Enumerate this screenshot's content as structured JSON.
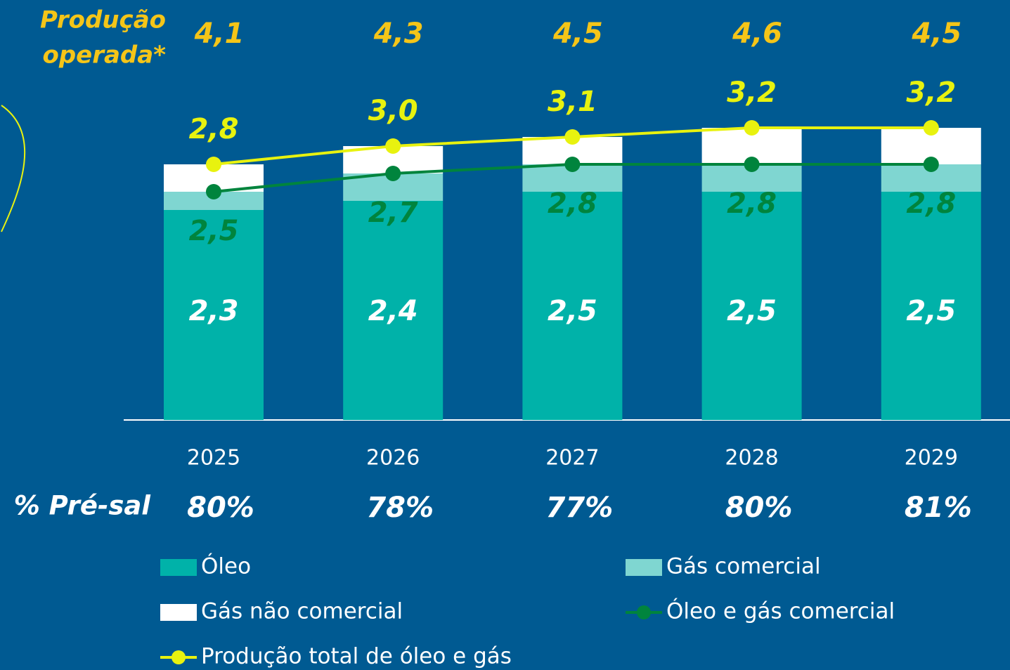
{
  "chart_data": {
    "type": "bar",
    "stacked": true,
    "categories": [
      "2025",
      "2026",
      "2027",
      "2028",
      "2029"
    ],
    "series": [
      {
        "name": "Óleo",
        "color": "#00b2a9",
        "values": [
          2.3,
          2.4,
          2.5,
          2.5,
          2.5
        ],
        "value_labels": [
          "2,3",
          "2,4",
          "2,5",
          "2,5",
          "2,5"
        ]
      },
      {
        "name": "Gás comercial",
        "color": "#7fd6d1",
        "values": [
          0.2,
          0.3,
          0.3,
          0.3,
          0.3
        ]
      },
      {
        "name": "Gás não comercial",
        "color": "#ffffff",
        "values": [
          0.3,
          0.3,
          0.3,
          0.4,
          0.4
        ]
      },
      {
        "name": "Óleo e gás comercial",
        "type": "line",
        "color": "#00843d",
        "values": [
          2.5,
          2.7,
          2.8,
          2.8,
          2.8
        ],
        "value_labels": [
          "2,5",
          "2,7",
          "2,8",
          "2,8",
          "2,8"
        ]
      },
      {
        "name": "Produção total de óleo e gás",
        "type": "line",
        "color": "#e8f20f",
        "values": [
          2.8,
          3.0,
          3.1,
          3.2,
          3.2
        ],
        "value_labels": [
          "2,8",
          "3,0",
          "3,1",
          "3,2",
          "3,2"
        ]
      }
    ],
    "operated_production": {
      "label_lines": [
        "Produção",
        "operada*"
      ],
      "values": [
        4.1,
        4.3,
        4.5,
        4.6,
        4.5
      ],
      "value_labels": [
        "4,1",
        "4,3",
        "4,5",
        "4,6",
        "4,5"
      ]
    },
    "pre_salt": {
      "label": "% Pré-sal",
      "values": [
        80,
        78,
        77,
        80,
        81
      ],
      "value_labels": [
        "80%",
        "78%",
        "77%",
        "80%",
        "81%"
      ]
    }
  }
}
